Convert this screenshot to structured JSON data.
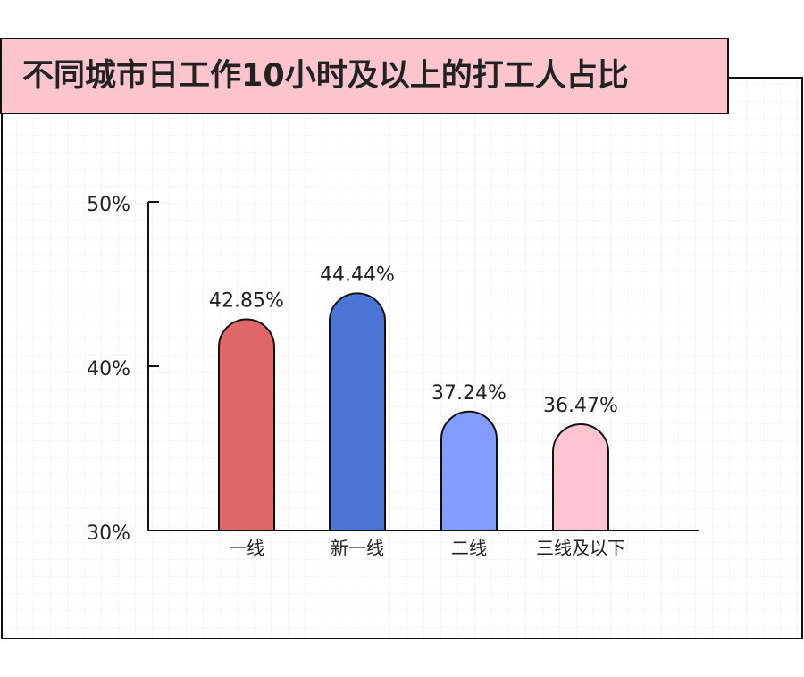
{
  "chart_data": {
    "type": "bar",
    "title": "不同城市日工作10小时及以上的打工人占比",
    "categories": [
      "一线",
      "新一线",
      "二线",
      "三线及以下"
    ],
    "values": [
      42.85,
      44.44,
      37.24,
      36.47
    ],
    "value_labels": [
      "42.85%",
      "44.44%",
      "37.24%",
      "36.47%"
    ],
    "colors": [
      "#e06767",
      "#4a74d6",
      "#829dff",
      "#ffc4d0"
    ],
    "ylim": [
      30,
      50
    ],
    "yticks": [
      {
        "value": 30,
        "label": "30%"
      },
      {
        "value": 40,
        "label": "40%"
      },
      {
        "value": 50,
        "label": "50%"
      }
    ]
  }
}
